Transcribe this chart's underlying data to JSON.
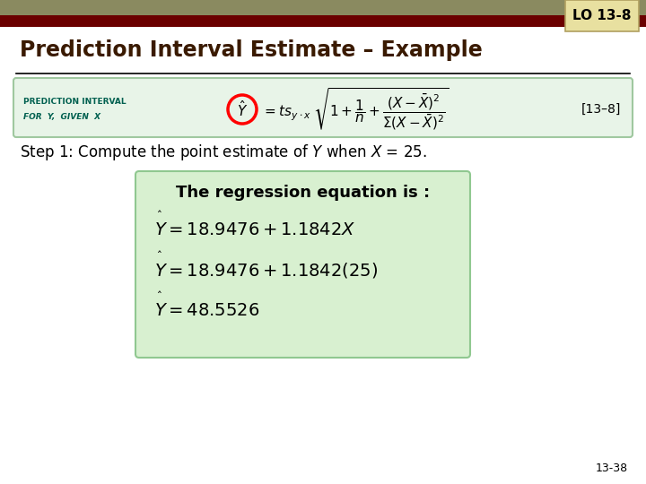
{
  "title": "Prediction Interval Estimate – Example",
  "lo_label": "LO 13-8",
  "formula_label_line1": "PREDICTION INTERVAL",
  "formula_label_line2": "FOR  Y,  GIVEN  X",
  "formula_ref": "[13–8]",
  "box_bg": "#e8f4e8",
  "box_border": "#a0c8a0",
  "header_bar_color1": "#8a8a60",
  "header_bar_color2": "#6b0000",
  "lo_box_bg": "#e8e0a0",
  "lo_border": "#b0a060",
  "page_num": "13-38",
  "reg_box_bg": "#d8f0d0",
  "reg_box_border": "#90c890",
  "title_color": "#3a1a00",
  "step_color": "#000000",
  "label_color": "#006050"
}
